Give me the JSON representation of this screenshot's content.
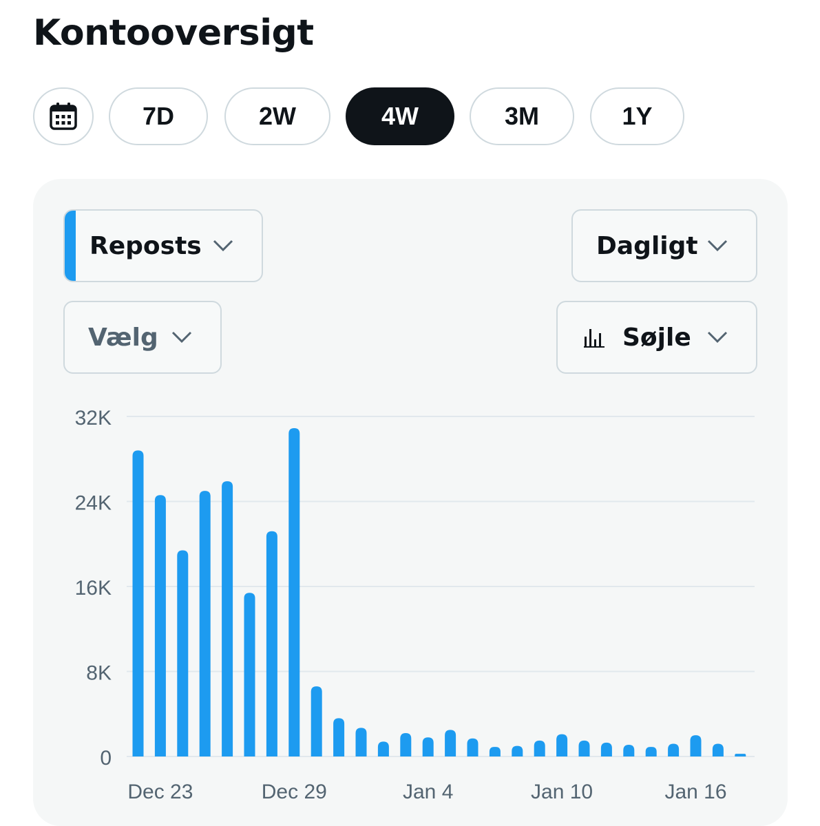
{
  "header": {
    "title": "Kontooversigt"
  },
  "range": {
    "calendar_icon": "calendar-icon",
    "options": [
      "7D",
      "2W",
      "4W",
      "3M",
      "1Y"
    ],
    "selected": "4W"
  },
  "controls": {
    "metric": {
      "label": "Reposts",
      "accent": "#1d9bf0"
    },
    "interval": {
      "label": "Dagligt"
    },
    "compare": {
      "label": "Vælg"
    },
    "chart_type": {
      "label": "Søjle",
      "icon": "bar-chart-icon"
    }
  },
  "colors": {
    "bar": "#1d9bf0",
    "grid": "#e1e8ed",
    "axis_text": "#536471"
  },
  "chart_data": {
    "type": "bar",
    "x_tick_labels": [
      "Dec 23",
      "Dec 29",
      "Jan 4",
      "Jan 10",
      "Jan 16"
    ],
    "y_tick_labels": [
      "0",
      "8K",
      "16K",
      "24K",
      "32K"
    ],
    "ylim": [
      0,
      32000
    ],
    "grid": true,
    "categories": [
      "Dec 22",
      "Dec 23",
      "Dec 24",
      "Dec 25",
      "Dec 26",
      "Dec 27",
      "Dec 28",
      "Dec 29",
      "Dec 30",
      "Dec 31",
      "Jan 1",
      "Jan 2",
      "Jan 3",
      "Jan 4",
      "Jan 5",
      "Jan 6",
      "Jan 7",
      "Jan 8",
      "Jan 9",
      "Jan 10",
      "Jan 11",
      "Jan 12",
      "Jan 13",
      "Jan 14",
      "Jan 15",
      "Jan 16",
      "Jan 17",
      "Jan 18"
    ],
    "series": [
      {
        "values": [
          28800,
          24600,
          19400,
          25000,
          25900,
          15400,
          21200,
          30900,
          6600,
          3600,
          2700,
          1400,
          2200,
          1800,
          2500,
          1700,
          900,
          1000,
          1500,
          2100,
          1500,
          1300,
          1100,
          900,
          1200,
          2000,
          1200,
          250
        ]
      }
    ]
  }
}
